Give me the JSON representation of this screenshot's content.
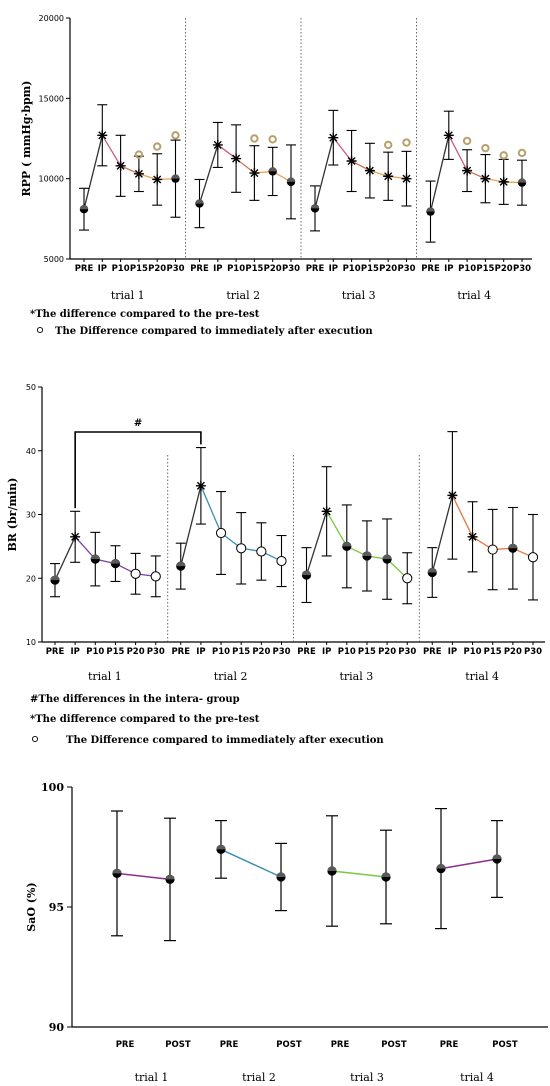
{
  "chart_data": [
    {
      "type": "line",
      "ylabel": "RPP ( mmHg·bpm)",
      "ylim": [
        5000,
        20000
      ],
      "yticks": [
        "5000",
        "10000",
        "15000",
        "20000"
      ],
      "categories": [
        "PRE",
        "IP",
        "P10",
        "P15",
        "P20",
        "P30"
      ],
      "groups": [
        "trial 1",
        "trial 2",
        "trial 3",
        "trial 4"
      ],
      "series": [
        {
          "group": "trial 1",
          "values": [
            8100,
            12700,
            10800,
            10300,
            9950,
            10000
          ],
          "err": [
            1300,
            1900,
            1900,
            1100,
            1600,
            2400
          ],
          "markers": [
            "circle",
            "star",
            "star",
            "star",
            "star",
            "circle"
          ],
          "diff_from_ip": [
            false,
            false,
            false,
            true,
            true,
            true
          ]
        },
        {
          "group": "trial 2",
          "values": [
            8450,
            12100,
            11250,
            10350,
            10450,
            9800
          ],
          "err": [
            1500,
            1400,
            2100,
            1700,
            1500,
            2300
          ],
          "markers": [
            "circle",
            "star",
            "star",
            "star",
            "circle",
            "circle"
          ],
          "diff_from_ip": [
            false,
            false,
            false,
            true,
            true,
            false
          ]
        },
        {
          "group": "trial 3",
          "values": [
            8150,
            12550,
            11100,
            10500,
            10150,
            10000
          ],
          "err": [
            1400,
            1700,
            1900,
            1700,
            1500,
            1700
          ],
          "markers": [
            "circle",
            "star",
            "star",
            "star",
            "star",
            "star"
          ],
          "diff_from_ip": [
            false,
            false,
            false,
            false,
            true,
            true
          ]
        },
        {
          "group": "trial 4",
          "values": [
            7950,
            12700,
            10500,
            10000,
            9800,
            9750
          ],
          "err": [
            1900,
            1500,
            1300,
            1500,
            1400,
            1400
          ],
          "markers": [
            "circle",
            "star",
            "star",
            "star",
            "star",
            "circle"
          ],
          "diff_from_ip": [
            false,
            false,
            true,
            true,
            true,
            true
          ]
        }
      ],
      "notes": [
        "*The difference compared to the pre-test",
        "The Difference compared to immediately after execution"
      ]
    },
    {
      "type": "line",
      "ylabel": "BR (br/min)",
      "ylim": [
        10,
        50
      ],
      "yticks": [
        "10",
        "20",
        "30",
        "40",
        "50"
      ],
      "categories": [
        "PRE",
        "IP",
        "P10",
        "P15",
        "P20",
        "P30"
      ],
      "groups": [
        "trial 1",
        "trial 2",
        "trial 3",
        "trial 4"
      ],
      "bracket_label": "#",
      "series": [
        {
          "group": "trial 1",
          "values": [
            19.7,
            26.5,
            23.0,
            22.3,
            20.7,
            20.3
          ],
          "err": [
            2.6,
            4.0,
            4.2,
            2.8,
            3.2,
            3.2
          ],
          "markers": [
            "circle",
            "star",
            "circle",
            "circle",
            "open",
            "open"
          ]
        },
        {
          "group": "trial 2",
          "values": [
            21.9,
            34.5,
            27.1,
            24.7,
            24.2,
            22.7
          ],
          "err": [
            3.6,
            6.0,
            6.5,
            5.6,
            4.5,
            4.0
          ],
          "markers": [
            "circle",
            "star",
            "open",
            "open",
            "open",
            "open"
          ]
        },
        {
          "group": "trial 3",
          "values": [
            20.5,
            30.5,
            25.0,
            23.5,
            23.0,
            20.0
          ],
          "err": [
            4.3,
            7.0,
            6.5,
            5.5,
            6.3,
            4.0
          ],
          "markers": [
            "circle",
            "star",
            "circle",
            "circle",
            "circle",
            "open"
          ]
        },
        {
          "group": "trial 4",
          "values": [
            20.9,
            33.0,
            26.5,
            24.5,
            24.7,
            23.3
          ],
          "err": [
            3.9,
            10.0,
            5.5,
            6.3,
            6.4,
            6.7
          ],
          "markers": [
            "circle",
            "star",
            "star",
            "open",
            "circle",
            "open"
          ]
        }
      ],
      "notes": [
        "#The differences in the intera- group",
        "*The difference compared to the pre-test",
        "The Difference compared to immediately after execution"
      ]
    },
    {
      "type": "line",
      "ylabel": "SaO  (%)",
      "ylim": [
        90,
        100
      ],
      "yticks": [
        "90",
        "95",
        "100"
      ],
      "categories": [
        "PRE",
        "POST"
      ],
      "groups": [
        "trial 1",
        "trial 2",
        "trial 3",
        "trial 4"
      ],
      "series": [
        {
          "group": "trial 1",
          "values": [
            96.4,
            96.15
          ],
          "err": [
            2.6,
            2.55
          ]
        },
        {
          "group": "trial 2",
          "values": [
            97.4,
            96.25
          ],
          "err": [
            1.2,
            1.4
          ]
        },
        {
          "group": "trial 3",
          "values": [
            96.5,
            96.25
          ],
          "err": [
            2.3,
            1.95
          ]
        },
        {
          "group": "trial 4",
          "values": [
            96.6,
            97.0
          ],
          "err": [
            2.5,
            1.6
          ]
        }
      ]
    }
  ],
  "colors": {
    "axis": "#000000",
    "trial_lines": [
      "#7b3fa3",
      "#3a8fb4",
      "#7ac943",
      "#e07a3a"
    ],
    "p_lines": [
      "#c85a8a",
      "#c97a58",
      "#e9a458"
    ],
    "open_marker_ring": "#b8a06a"
  }
}
